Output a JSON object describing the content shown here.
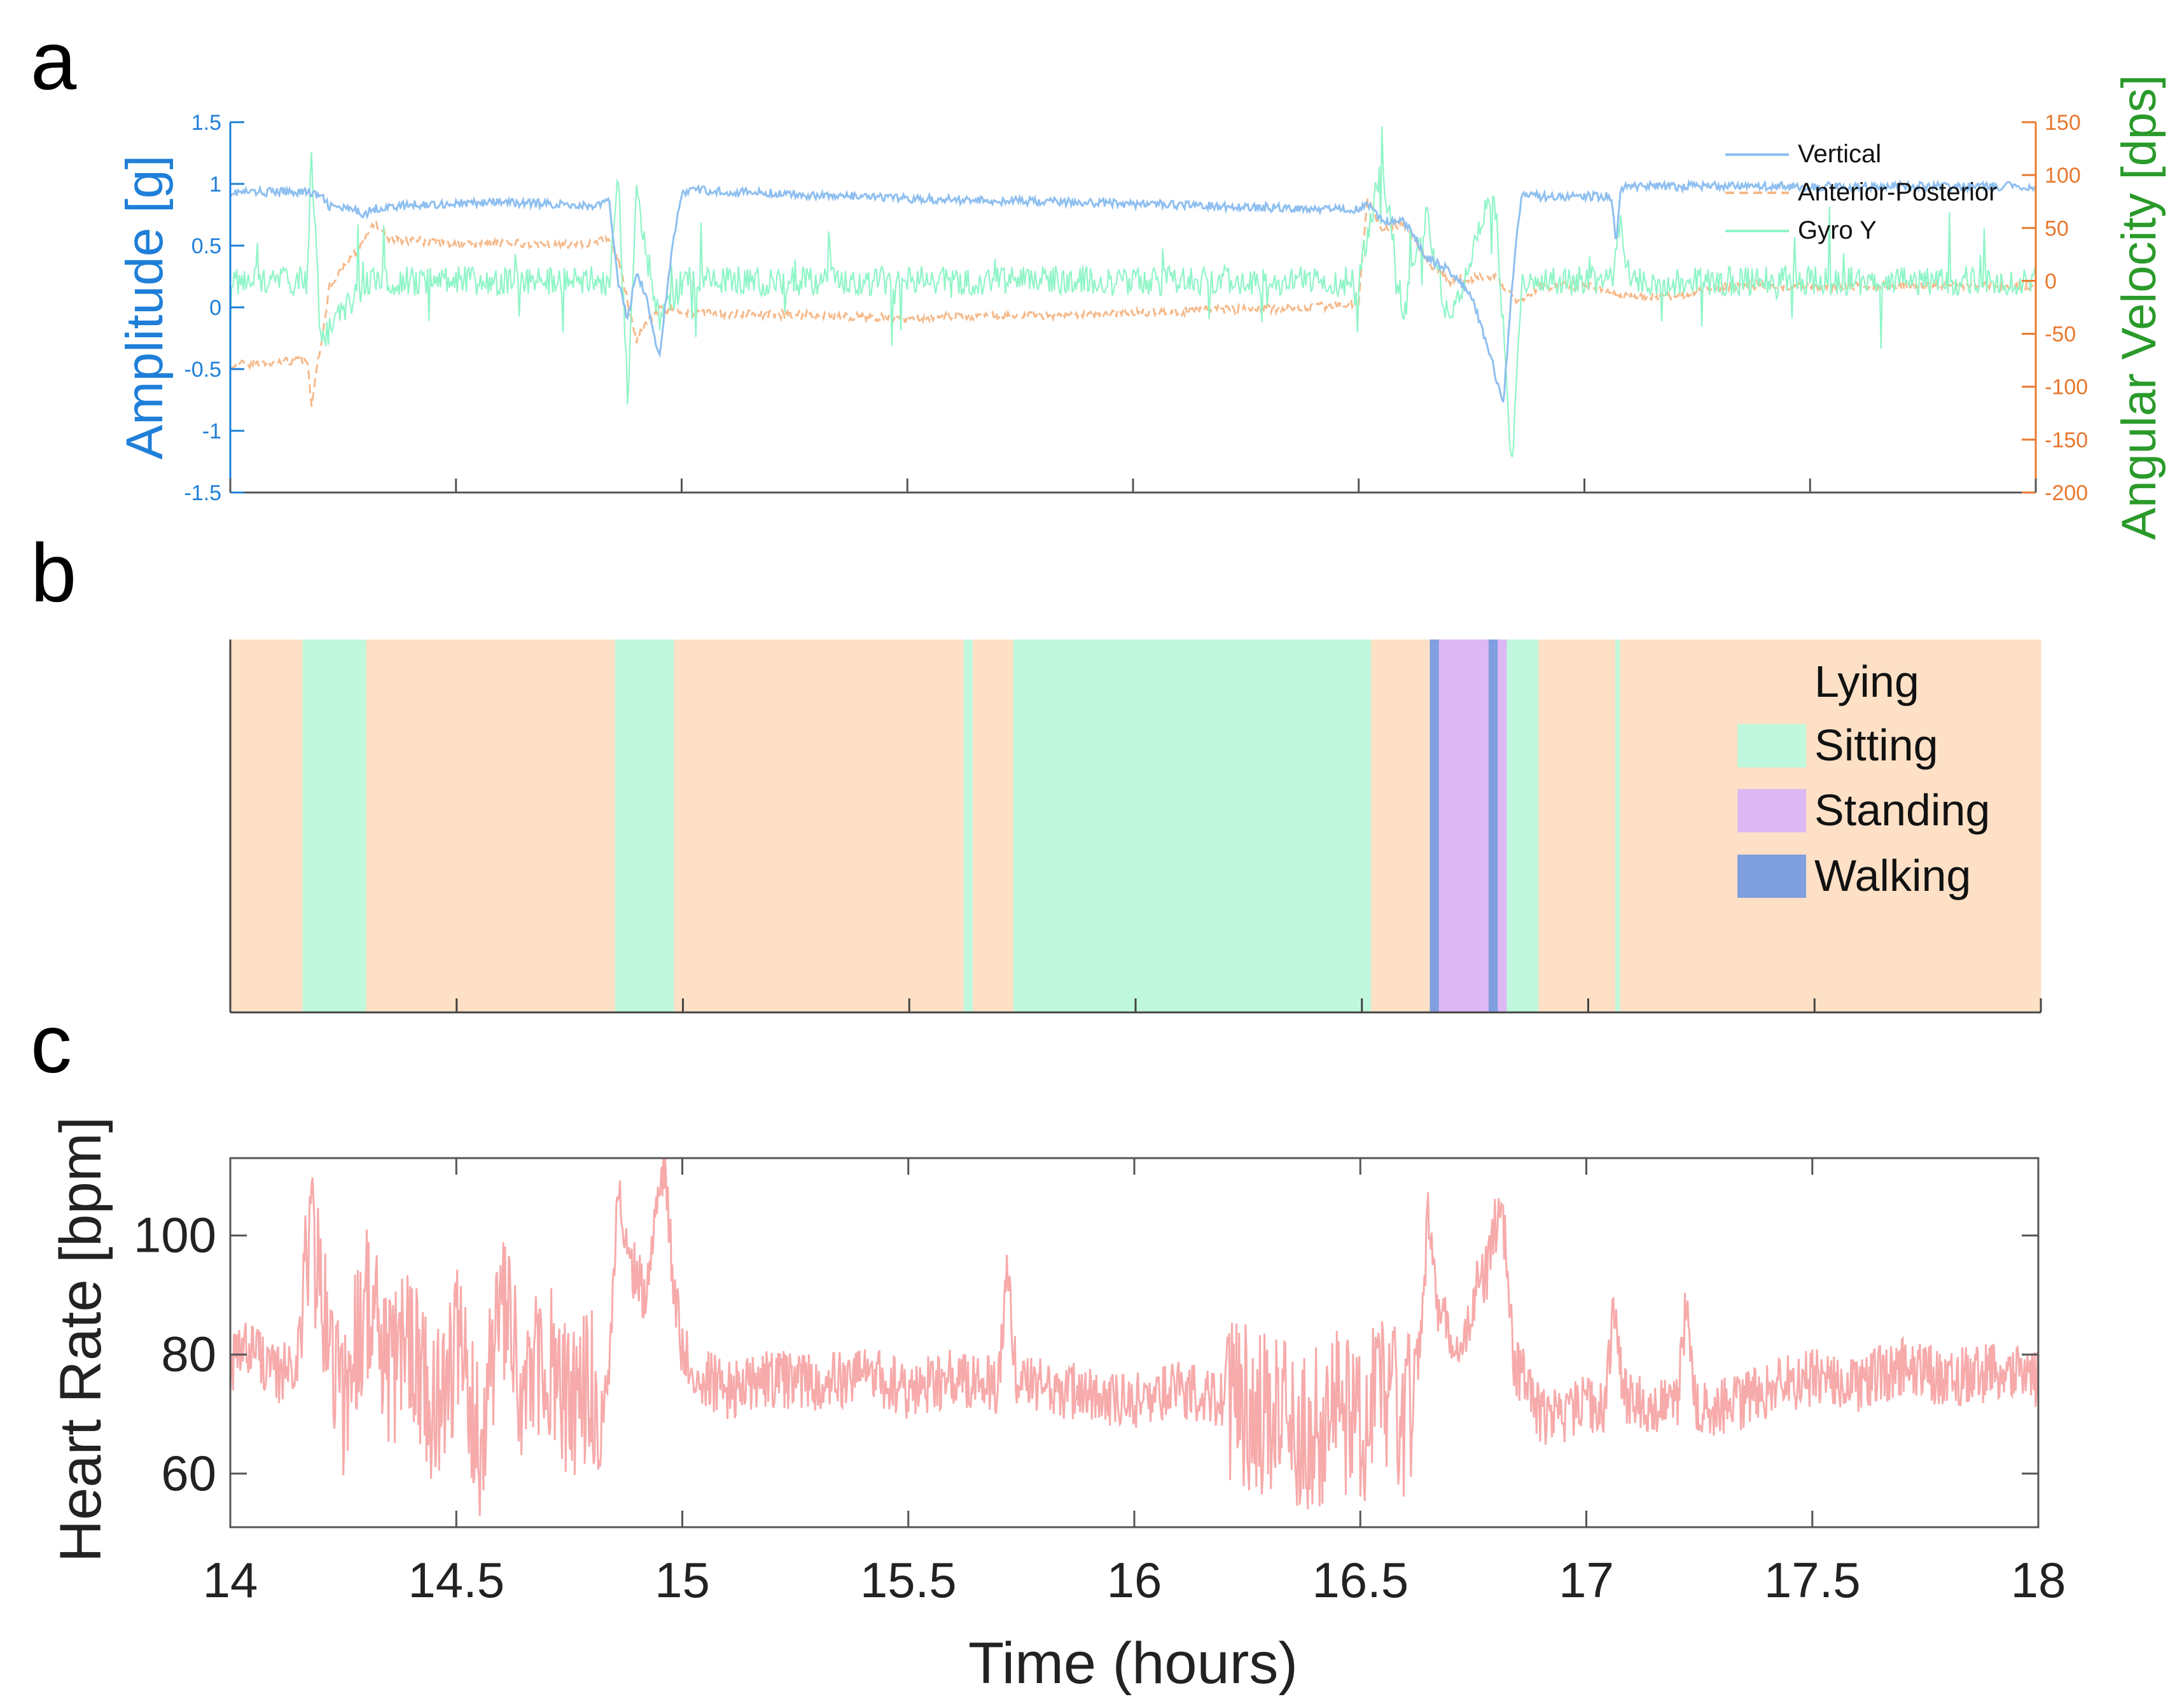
{
  "panels": {
    "a": {
      "letter": "a"
    },
    "b": {
      "letter": "b"
    },
    "c": {
      "letter": "c"
    }
  },
  "colors": {
    "vertical": "#8ebff0",
    "anterior_posterior": "#f5b98a",
    "gyro": "#8ff5c7",
    "left_axis": "#1f7fd8",
    "right_axis": "#e8782f",
    "right_label": "#2a9a2a",
    "lying": "#fde0c5",
    "sitting": "#bff8dd",
    "standing": "#dcb8f5",
    "walking": "#7f9fe0",
    "heart_rate": "#f7aaaa"
  },
  "chart_data": [
    {
      "id": "a",
      "type": "line",
      "title": "",
      "xlim": [
        14,
        18
      ],
      "x_ticks": [
        14,
        14.5,
        15,
        15.5,
        16,
        16.5,
        17,
        17.5,
        18
      ],
      "ylabel": "Amplitude [g]",
      "ylim": [
        -1.5,
        1.5
      ],
      "y_ticks": [
        "-1.5",
        "-1",
        "-0.5",
        "0",
        "0.5",
        "1",
        "1.5"
      ],
      "ylabel_right": "Angular Velocity [dps]",
      "ylim_right": [
        -200,
        150
      ],
      "y_ticks_right": [
        "-200",
        "-150",
        "-100",
        "-50",
        "0",
        "50",
        "100",
        "150"
      ],
      "legend": [
        "Vertical",
        "Anterior-Posterior",
        "Gyro Y"
      ],
      "legend_position": "top-right",
      "series": [
        {
          "name": "Vertical",
          "axis": "left",
          "style": "solid",
          "x": [
            14.0,
            14.17,
            14.18,
            14.2,
            14.22,
            14.25,
            14.3,
            14.32,
            14.4,
            14.5,
            14.6,
            14.7,
            14.8,
            14.84,
            14.86,
            14.88,
            14.9,
            14.92,
            14.95,
            14.98,
            15.0,
            15.02,
            15.5,
            16.0,
            16.4,
            16.5,
            16.52,
            16.55,
            16.6,
            16.62,
            16.65,
            16.7,
            16.75,
            16.8,
            16.82,
            16.84,
            16.86,
            16.9,
            17.0,
            17.06,
            17.07,
            17.08,
            17.1,
            17.3,
            17.5,
            17.8,
            18.0
          ],
          "y": [
            0.93,
            0.94,
            0.92,
            0.9,
            0.82,
            0.8,
            0.76,
            0.8,
            0.83,
            0.84,
            0.85,
            0.84,
            0.82,
            0.85,
            0.2,
            -0.1,
            0.3,
            0.1,
            -0.4,
            0.5,
            0.92,
            0.95,
            0.88,
            0.84,
            0.8,
            0.8,
            0.85,
            0.7,
            0.7,
            0.6,
            0.4,
            0.3,
            0.1,
            -0.5,
            -0.8,
            0.2,
            0.9,
            0.9,
            0.9,
            0.9,
            0.5,
            0.95,
            0.98,
            0.98,
            0.98,
            0.98,
            0.98
          ]
        },
        {
          "name": "Anterior-Posterior",
          "axis": "right",
          "style": "dashed",
          "x": [
            14.0,
            14.17,
            14.18,
            14.2,
            14.22,
            14.3,
            14.32,
            14.35,
            14.5,
            14.8,
            14.84,
            14.86,
            14.88,
            14.9,
            14.95,
            15.0,
            15.02,
            15.5,
            16.0,
            16.4,
            16.5,
            16.52,
            16.55,
            16.6,
            16.65,
            16.7,
            16.8,
            16.85,
            16.9,
            17.0,
            17.06,
            17.08,
            17.1,
            17.2,
            17.3,
            17.5,
            18.0
          ],
          "y": [
            -80,
            -75,
            -115,
            -60,
            -5,
            40,
            55,
            40,
            35,
            35,
            40,
            20,
            -20,
            -55,
            -25,
            -30,
            -30,
            -35,
            -30,
            -25,
            -20,
            80,
            50,
            55,
            20,
            0,
            5,
            -20,
            -5,
            -5,
            -10,
            -15,
            -15,
            -15,
            -5,
            -5,
            -5
          ]
        },
        {
          "name": "Gyro Y",
          "axis": "right",
          "style": "solid",
          "x": [
            14.0,
            14.17,
            14.18,
            14.2,
            14.3,
            14.5,
            14.84,
            14.86,
            14.88,
            14.9,
            14.95,
            15.0,
            15.5,
            16.0,
            16.5,
            16.55,
            16.6,
            16.65,
            16.7,
            16.8,
            16.84,
            16.86,
            16.9,
            17.06,
            17.08,
            17.1,
            17.5,
            18.0
          ],
          "y": [
            0,
            0,
            120,
            -60,
            0,
            0,
            0,
            100,
            -120,
            80,
            -40,
            0,
            0,
            0,
            0,
            110,
            -30,
            60,
            -40,
            90,
            -180,
            0,
            0,
            0,
            60,
            0,
            0,
            0
          ]
        }
      ]
    },
    {
      "id": "b",
      "type": "timeline",
      "xlim": [
        14,
        18
      ],
      "x_ticks": [
        14,
        14.5,
        15,
        15.5,
        16,
        16.5,
        17,
        17.5,
        18
      ],
      "legend": [
        "Lying",
        "Sitting",
        "Standing",
        "Walking"
      ],
      "legend_position": "top-right",
      "segments": [
        {
          "state": "Lying",
          "start": 14.0,
          "end": 14.16
        },
        {
          "state": "Sitting",
          "start": 14.16,
          "end": 14.3
        },
        {
          "state": "Lying",
          "start": 14.3,
          "end": 14.85
        },
        {
          "state": "Sitting",
          "start": 14.85,
          "end": 14.98
        },
        {
          "state": "Lying",
          "start": 14.98,
          "end": 15.62
        },
        {
          "state": "Sitting",
          "start": 15.62,
          "end": 15.64
        },
        {
          "state": "Lying",
          "start": 15.64,
          "end": 15.73
        },
        {
          "state": "Sitting",
          "start": 15.73,
          "end": 16.52
        },
        {
          "state": "Lying",
          "start": 16.52,
          "end": 16.65
        },
        {
          "state": "Walking",
          "start": 16.65,
          "end": 16.67
        },
        {
          "state": "Standing",
          "start": 16.67,
          "end": 16.78
        },
        {
          "state": "Walking",
          "start": 16.78,
          "end": 16.8
        },
        {
          "state": "Standing",
          "start": 16.8,
          "end": 16.82
        },
        {
          "state": "Sitting",
          "start": 16.82,
          "end": 16.89
        },
        {
          "state": "Lying",
          "start": 16.89,
          "end": 17.06
        },
        {
          "state": "Sitting",
          "start": 17.06,
          "end": 17.07
        },
        {
          "state": "Lying",
          "start": 17.07,
          "end": 18.0
        }
      ]
    },
    {
      "id": "c",
      "type": "line",
      "xlabel": "Time (hours)",
      "ylabel": "Heart Rate [bpm]",
      "xlim": [
        14,
        18
      ],
      "ylim": [
        51,
        113
      ],
      "x_ticks": [
        "14",
        "14.5",
        "15",
        "15.5",
        "16",
        "16.5",
        "17",
        "17.5",
        "18"
      ],
      "y_ticks": [
        "60",
        "80",
        "100"
      ],
      "series": [
        {
          "name": "Heart Rate",
          "x": [
            14.0,
            14.05,
            14.1,
            14.15,
            14.18,
            14.2,
            14.25,
            14.3,
            14.35,
            14.4,
            14.45,
            14.5,
            14.55,
            14.6,
            14.65,
            14.7,
            14.75,
            14.8,
            14.82,
            14.84,
            14.86,
            14.88,
            14.9,
            14.92,
            14.94,
            14.96,
            14.98,
            15.0,
            15.05,
            15.1,
            15.2,
            15.3,
            15.4,
            15.5,
            15.6,
            15.7,
            15.72,
            15.74,
            15.8,
            15.9,
            16.0,
            16.1,
            16.2,
            16.3,
            16.35,
            16.4,
            16.45,
            16.5,
            16.55,
            16.6,
            16.63,
            16.65,
            16.67,
            16.7,
            16.72,
            16.75,
            16.78,
            16.8,
            16.82,
            16.84,
            16.86,
            16.88,
            16.9,
            16.95,
            17.0,
            17.04,
            17.06,
            17.08,
            17.1,
            17.2,
            17.22,
            17.24,
            17.3,
            17.4,
            17.5,
            17.6,
            17.7,
            17.8,
            17.9,
            18.0
          ],
          "y": [
            78,
            82,
            76,
            80,
            104,
            88,
            72,
            90,
            76,
            84,
            70,
            82,
            66,
            88,
            72,
            80,
            70,
            76,
            68,
            80,
            110,
            95,
            94,
            88,
            106,
            112,
            92,
            80,
            76,
            74,
            76,
            75,
            77,
            74,
            76,
            75,
            96,
            74,
            75,
            73,
            72,
            74,
            72,
            70,
            68,
            67,
            72,
            66,
            74,
            68,
            80,
            103,
            88,
            84,
            78,
            90,
            94,
            102,
            100,
            78,
            76,
            72,
            70,
            69,
            72,
            70,
            88,
            74,
            72,
            71,
            88,
            72,
            71,
            74,
            76,
            75,
            78,
            76,
            77,
            76
          ]
        }
      ]
    }
  ]
}
